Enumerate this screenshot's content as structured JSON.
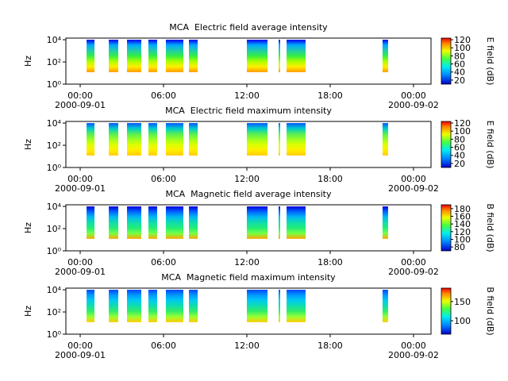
{
  "chart_data": [
    {
      "type": "spectrogram",
      "title": "MCA  Electric field average intensity",
      "ylabel": "Hz",
      "log_y": true,
      "ylim": [
        1,
        14000
      ],
      "yticks": [
        {
          "value": 1,
          "label": "10⁰"
        },
        {
          "value": 100,
          "label": "10²"
        },
        {
          "value": 10000,
          "label": "10⁴"
        }
      ],
      "xlim": [
        -1.03,
        25.26
      ],
      "xticks": [
        {
          "value": 0,
          "label": "00:00"
        },
        {
          "value": 6,
          "label": "06:00"
        },
        {
          "value": 12,
          "label": "12:00"
        },
        {
          "value": 18,
          "label": "18:00"
        },
        {
          "value": 24,
          "label": "00:00"
        }
      ],
      "xdates": [
        {
          "value": 0,
          "label": "2000-09-01"
        },
        {
          "value": 24,
          "label": "2000-09-02"
        }
      ],
      "segments": [
        [
          0.46,
          1.03
        ],
        [
          2.06,
          2.74
        ],
        [
          3.37,
          4.4
        ],
        [
          4.91,
          5.54
        ],
        [
          6.17,
          7.43
        ],
        [
          7.83,
          8.46
        ],
        [
          12.0,
          13.49
        ],
        [
          14.29,
          14.4
        ],
        [
          14.86,
          16.23
        ],
        [
          21.77,
          22.17
        ]
      ],
      "freq_range": [
        12,
        10000
      ],
      "colors": [
        "#ff9900",
        "#ffee00",
        "#aaff00",
        "#33ee44",
        "#22ccaa",
        "#00aaff",
        "#0000ee"
      ],
      "colorbar": {
        "label": "E field (dB)",
        "lim": [
          10,
          124
        ],
        "ticks": [
          20,
          40,
          60,
          80,
          100,
          120
        ]
      }
    },
    {
      "type": "spectrogram",
      "title": "MCA  Electric field maximum intensity",
      "ylabel": "Hz",
      "log_y": true,
      "ylim": [
        1,
        14000
      ],
      "yticks": [
        {
          "value": 1,
          "label": "10⁰"
        },
        {
          "value": 100,
          "label": "10²"
        },
        {
          "value": 10000,
          "label": "10⁴"
        }
      ],
      "xlim": [
        -1.03,
        25.26
      ],
      "xticks": [
        {
          "value": 0,
          "label": "00:00"
        },
        {
          "value": 6,
          "label": "06:00"
        },
        {
          "value": 12,
          "label": "12:00"
        },
        {
          "value": 18,
          "label": "18:00"
        },
        {
          "value": 24,
          "label": "00:00"
        }
      ],
      "xdates": [
        {
          "value": 0,
          "label": "2000-09-01"
        },
        {
          "value": 24,
          "label": "2000-09-02"
        }
      ],
      "segments": [
        [
          0.46,
          1.03
        ],
        [
          2.06,
          2.74
        ],
        [
          3.37,
          4.4
        ],
        [
          4.91,
          5.54
        ],
        [
          6.17,
          7.43
        ],
        [
          7.83,
          8.46
        ],
        [
          12.0,
          13.49
        ],
        [
          14.29,
          14.4
        ],
        [
          14.86,
          16.23
        ],
        [
          21.77,
          22.17
        ]
      ],
      "freq_range": [
        12,
        10000
      ],
      "colors": [
        "#ffcc00",
        "#ffee00",
        "#ddff00",
        "#99ff22",
        "#55ee55",
        "#00cccc",
        "#0055ff"
      ],
      "colorbar": {
        "label": "E field (dB)",
        "lim": [
          10,
          124
        ],
        "ticks": [
          20,
          40,
          60,
          80,
          100,
          120
        ]
      }
    },
    {
      "type": "spectrogram",
      "title": "MCA  Magnetic field average intensity",
      "ylabel": "Hz",
      "log_y": true,
      "ylim": [
        1,
        14000
      ],
      "yticks": [
        {
          "value": 1,
          "label": "10⁰"
        },
        {
          "value": 100,
          "label": "10²"
        },
        {
          "value": 10000,
          "label": "10⁴"
        }
      ],
      "xlim": [
        -1.03,
        25.26
      ],
      "xticks": [
        {
          "value": 0,
          "label": "00:00"
        },
        {
          "value": 6,
          "label": "06:00"
        },
        {
          "value": 12,
          "label": "12:00"
        },
        {
          "value": 18,
          "label": "18:00"
        },
        {
          "value": 24,
          "label": "00:00"
        }
      ],
      "xdates": [
        {
          "value": 0,
          "label": "2000-09-01"
        },
        {
          "value": 24,
          "label": "2000-09-02"
        }
      ],
      "segments": [
        [
          0.46,
          1.03
        ],
        [
          2.06,
          2.74
        ],
        [
          3.37,
          4.4
        ],
        [
          4.91,
          5.54
        ],
        [
          6.17,
          7.43
        ],
        [
          7.83,
          8.46
        ],
        [
          12.0,
          13.49
        ],
        [
          14.29,
          14.4
        ],
        [
          14.86,
          16.23
        ],
        [
          21.77,
          22.17
        ]
      ],
      "freq_range": [
        12,
        10000
      ],
      "colors": [
        "#ffaa00",
        "#77ff44",
        "#22ee77",
        "#11ddaa",
        "#00bbee",
        "#0066ff",
        "#0000dd"
      ],
      "colorbar": {
        "label": "B field (dB)",
        "lim": [
          70,
          190
        ],
        "ticks": [
          80,
          100,
          120,
          140,
          160,
          180
        ]
      }
    },
    {
      "type": "spectrogram",
      "title": "MCA  Magnetic field maximum intensity",
      "ylabel": "Hz",
      "log_y": true,
      "ylim": [
        1,
        14000
      ],
      "yticks": [
        {
          "value": 1,
          "label": "10⁰"
        },
        {
          "value": 100,
          "label": "10²"
        },
        {
          "value": 10000,
          "label": "10⁴"
        }
      ],
      "xlim": [
        -1.03,
        25.26
      ],
      "xticks": [
        {
          "value": 0,
          "label": "00:00"
        },
        {
          "value": 6,
          "label": "06:00"
        },
        {
          "value": 12,
          "label": "12:00"
        },
        {
          "value": 18,
          "label": "18:00"
        },
        {
          "value": 24,
          "label": "00:00"
        }
      ],
      "xdates": [
        {
          "value": 0,
          "label": "2000-09-01"
        },
        {
          "value": 24,
          "label": "2000-09-02"
        }
      ],
      "segments": [
        [
          0.46,
          1.03
        ],
        [
          2.06,
          2.74
        ],
        [
          3.37,
          4.4
        ],
        [
          4.91,
          5.54
        ],
        [
          6.17,
          7.43
        ],
        [
          7.83,
          8.46
        ],
        [
          12.0,
          13.49
        ],
        [
          14.29,
          14.4
        ],
        [
          14.86,
          16.23
        ],
        [
          21.77,
          22.17
        ]
      ],
      "freq_range": [
        12,
        10000
      ],
      "colors": [
        "#ffcc00",
        "#99ff33",
        "#33ee66",
        "#11ddaa",
        "#00ccee",
        "#0099ff",
        "#0044ff"
      ],
      "colorbar": {
        "label": "B field (dB)",
        "lim": [
          65,
          185
        ],
        "ticks": [
          100,
          150
        ]
      }
    }
  ]
}
